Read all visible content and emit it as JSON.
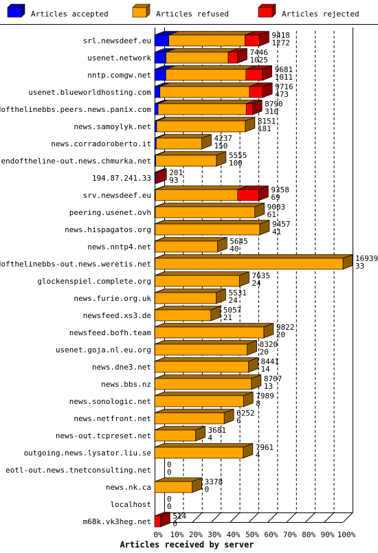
{
  "chart_data": {
    "type": "bar",
    "orientation": "horizontal",
    "stacked": true,
    "style": "3d",
    "legend_position": "top",
    "xlabel": "Articles received by server",
    "xlim": [
      0,
      100
    ],
    "x_unit": "%",
    "xticks": [
      "0%",
      "10%",
      "20%",
      "30%",
      "40%",
      "50%",
      "60%",
      "70%",
      "80%",
      "90%",
      "100%"
    ],
    "colors": {
      "accepted": "#0000ff",
      "refused": "#ffa500",
      "rejected": "#ff0000"
    },
    "series": [
      {
        "key": "accepted",
        "name": "Articles accepted"
      },
      {
        "key": "refused",
        "name": "Articles refused"
      },
      {
        "key": "rejected",
        "name": "Articles rejected"
      }
    ],
    "rows": [
      {
        "server": "srl.newsdeef.eu",
        "value1": "9418",
        "value2": "1272",
        "accepted": 1272,
        "refused": 6850,
        "rejected": 1296
      },
      {
        "server": "usenet.network",
        "value1": "7446",
        "value2": "1025",
        "accepted": 1025,
        "refused": 5590,
        "rejected": 831
      },
      {
        "server": "nntp.comgw.net",
        "value1": "9681",
        "value2": "1011",
        "accepted": 1011,
        "refused": 7200,
        "rejected": 1470
      },
      {
        "server": "usenet.blueworldhosting.com",
        "value1": "9716",
        "value2": "473",
        "accepted": 473,
        "refused": 8050,
        "rejected": 1193
      },
      {
        "server": "endofthelinebbs.peers.news.panix.com",
        "value1": "8790",
        "value2": "310",
        "accepted": 310,
        "refused": 7930,
        "rejected": 550
      },
      {
        "server": "news.samoylyk.net",
        "value1": "8151",
        "value2": "181",
        "accepted": 181,
        "refused": 7970,
        "rejected": 0
      },
      {
        "server": "news.corradoroberto.it",
        "value1": "4237",
        "value2": "150",
        "accepted": 150,
        "refused": 4087,
        "rejected": 0
      },
      {
        "server": "endoftheline-out.news.chmurka.net",
        "value1": "5555",
        "value2": "100",
        "accepted": 100,
        "refused": 5455,
        "rejected": 0
      },
      {
        "server": "194.87.241.33",
        "value1": "201",
        "value2": "93",
        "accepted": 93,
        "refused": 0,
        "rejected": 108
      },
      {
        "server": "srv.newsdeef.eu",
        "value1": "9358",
        "value2": "69",
        "accepted": 69,
        "refused": 7400,
        "rejected": 1889
      },
      {
        "server": "peering.usenet.ovh",
        "value1": "9003",
        "value2": "61",
        "accepted": 61,
        "refused": 8942,
        "rejected": 0
      },
      {
        "server": "news.hispagatos.org",
        "value1": "9457",
        "value2": "41",
        "accepted": 41,
        "refused": 9416,
        "rejected": 0
      },
      {
        "server": "news.nntp4.net",
        "value1": "5645",
        "value2": "40",
        "accepted": 40,
        "refused": 5605,
        "rejected": 0
      },
      {
        "server": "endofthelinebbs-out.news.weretis.net",
        "value1": "16939",
        "value2": "33",
        "accepted": 33,
        "refused": 16906,
        "rejected": 0
      },
      {
        "server": "glockenspiel.complete.org",
        "value1": "7635",
        "value2": "24",
        "accepted": 24,
        "refused": 7611,
        "rejected": 0
      },
      {
        "server": "news.furie.org.uk",
        "value1": "5531",
        "value2": "24",
        "accepted": 24,
        "refused": 5507,
        "rejected": 0
      },
      {
        "server": "newsfeed.xs3.de",
        "value1": "5057",
        "value2": "21",
        "accepted": 21,
        "refused": 5036,
        "rejected": 0
      },
      {
        "server": "newsfeed.bofh.team",
        "value1": "9822",
        "value2": "20",
        "accepted": 20,
        "refused": 9802,
        "rejected": 0
      },
      {
        "server": "usenet.goja.nl.eu.org",
        "value1": "8320",
        "value2": "20",
        "accepted": 20,
        "refused": 8300,
        "rejected": 0
      },
      {
        "server": "news.dne3.net",
        "value1": "8441",
        "value2": "14",
        "accepted": 14,
        "refused": 8427,
        "rejected": 0
      },
      {
        "server": "news.bbs.nz",
        "value1": "8707",
        "value2": "13",
        "accepted": 13,
        "refused": 8694,
        "rejected": 0
      },
      {
        "server": "news.sonologic.net",
        "value1": "7989",
        "value2": "8",
        "accepted": 8,
        "refused": 7981,
        "rejected": 0
      },
      {
        "server": "news.netfront.net",
        "value1": "6252",
        "value2": "6",
        "accepted": 6,
        "refused": 6246,
        "rejected": 0
      },
      {
        "server": "news-out.tcpreset.net",
        "value1": "3681",
        "value2": "4",
        "accepted": 4,
        "refused": 3677,
        "rejected": 0
      },
      {
        "server": "outgoing.news.lysator.liu.se",
        "value1": "7961",
        "value2": "4",
        "accepted": 4,
        "refused": 7957,
        "rejected": 0
      },
      {
        "server": "eotl-out.news.tnetconsulting.net",
        "value1": "0",
        "value2": "0",
        "accepted": 0,
        "refused": 0,
        "rejected": 0
      },
      {
        "server": "news.nk.ca",
        "value1": "3378",
        "value2": "0",
        "accepted": 0,
        "refused": 3378,
        "rejected": 0
      },
      {
        "server": "localhost",
        "value1": "0",
        "value2": "0",
        "accepted": 0,
        "refused": 0,
        "rejected": 0
      },
      {
        "server": "m68k.vk3heg.net",
        "value1": "514",
        "value2": "0",
        "accepted": 0,
        "refused": 0,
        "rejected": 514
      }
    ]
  }
}
